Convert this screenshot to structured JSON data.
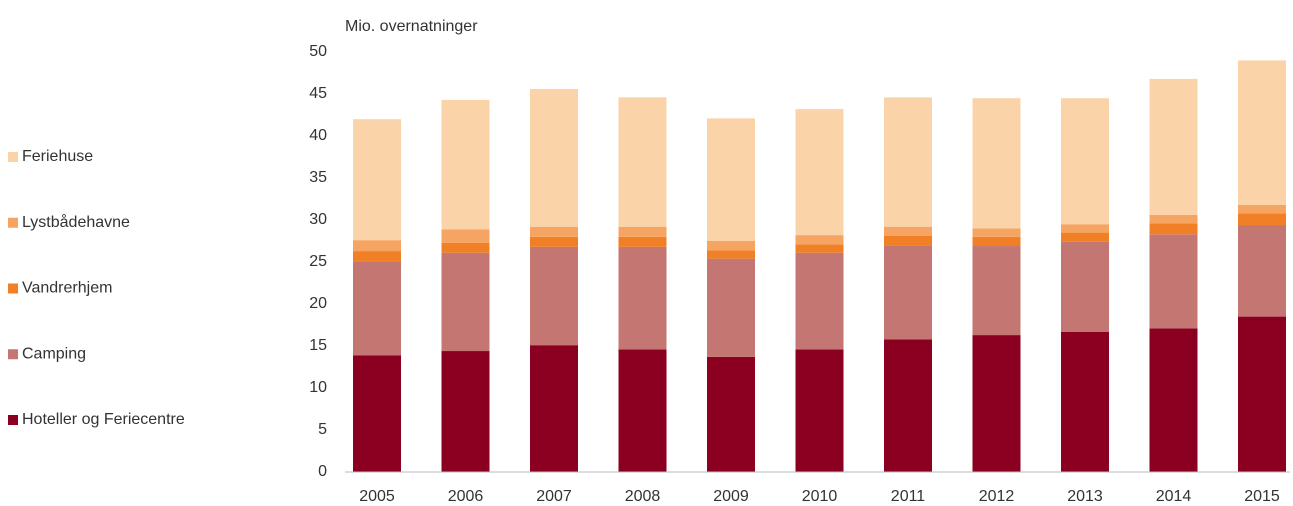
{
  "chart_data": {
    "type": "stacked_bar",
    "y_axis_label": "Mio. overnatninger",
    "categories": [
      "2005",
      "2006",
      "2007",
      "2008",
      "2009",
      "2010",
      "2011",
      "2012",
      "2013",
      "2014",
      "2015"
    ],
    "series": [
      {
        "name": "Hoteller og Feriecentre",
        "color": "#8b0021",
        "values": [
          13.9,
          14.4,
          15.1,
          14.6,
          13.7,
          14.6,
          15.8,
          16.3,
          16.7,
          17.1,
          18.5
        ]
      },
      {
        "name": "Camping",
        "color": "#c47672",
        "values": [
          11.2,
          11.7,
          11.7,
          12.2,
          11.7,
          11.5,
          11.2,
          10.6,
          10.7,
          11.2,
          10.9
        ]
      },
      {
        "name": "Vandrerhjem",
        "color": "#f07f26",
        "values": [
          1.2,
          1.2,
          1.2,
          1.2,
          1.0,
          1.0,
          1.1,
          1.1,
          1.1,
          1.3,
          1.4
        ]
      },
      {
        "name": "Lystbådehavne",
        "color": "#f6a462",
        "values": [
          1.3,
          1.6,
          1.2,
          1.2,
          1.1,
          1.1,
          1.1,
          1.0,
          1.0,
          1.0,
          1.0
        ]
      },
      {
        "name": "Feriehuse",
        "color": "#fbd3a8",
        "values": [
          14.4,
          15.4,
          16.4,
          15.4,
          14.6,
          15.0,
          15.4,
          15.5,
          15.0,
          16.2,
          17.2
        ]
      }
    ],
    "ylim": [
      0,
      50
    ],
    "yticks": [
      0,
      5,
      10,
      15,
      20,
      25,
      30,
      35,
      40,
      45,
      50
    ],
    "grid": false,
    "legend": "left"
  }
}
